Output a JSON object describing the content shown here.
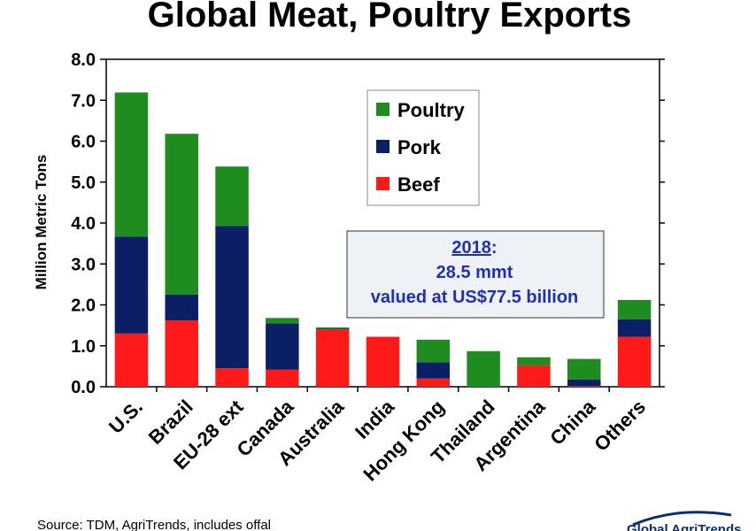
{
  "chart_data": {
    "type": "bar",
    "stacked": true,
    "title": "Global Meat, Poultry Exports",
    "ylabel": "Million Metric Tons",
    "ylim": [
      0,
      8
    ],
    "yticks": [
      "0.0",
      "1.0",
      "2.0",
      "3.0",
      "4.0",
      "5.0",
      "6.0",
      "7.0",
      "8.0"
    ],
    "categories": [
      "U.S.",
      "Brazil",
      "EU-28 ext",
      "Canada",
      "Australia",
      "India",
      "Hong Kong",
      "Thailand",
      "Argentina",
      "China",
      "Others"
    ],
    "series": [
      {
        "name": "Beef",
        "color": "#ff1a1a",
        "values": [
          1.3,
          1.62,
          0.45,
          0.42,
          1.4,
          1.22,
          0.2,
          0.0,
          0.52,
          0.02,
          1.22
        ]
      },
      {
        "name": "Pork",
        "color": "#0b1f66",
        "values": [
          2.37,
          0.63,
          3.48,
          1.13,
          0.02,
          0.0,
          0.4,
          0.0,
          0.0,
          0.16,
          0.43
        ]
      },
      {
        "name": "Poultry",
        "color": "#1f8c1f",
        "values": [
          3.52,
          3.93,
          1.45,
          0.13,
          0.03,
          0.0,
          0.55,
          0.87,
          0.2,
          0.5,
          0.47
        ]
      }
    ],
    "legend_order": [
      "Poultry",
      "Pork",
      "Beef"
    ],
    "legend_position": "top-center",
    "grid": false,
    "annotation": {
      "year": "2018",
      "suffix": ":",
      "line2": "28.5 mmt",
      "line3": "valued at US$77.5  billion"
    }
  },
  "footer": {
    "source": "Source:  TDM, AgriTrends, includes offal",
    "logo_text": "Global AgriTrends"
  }
}
